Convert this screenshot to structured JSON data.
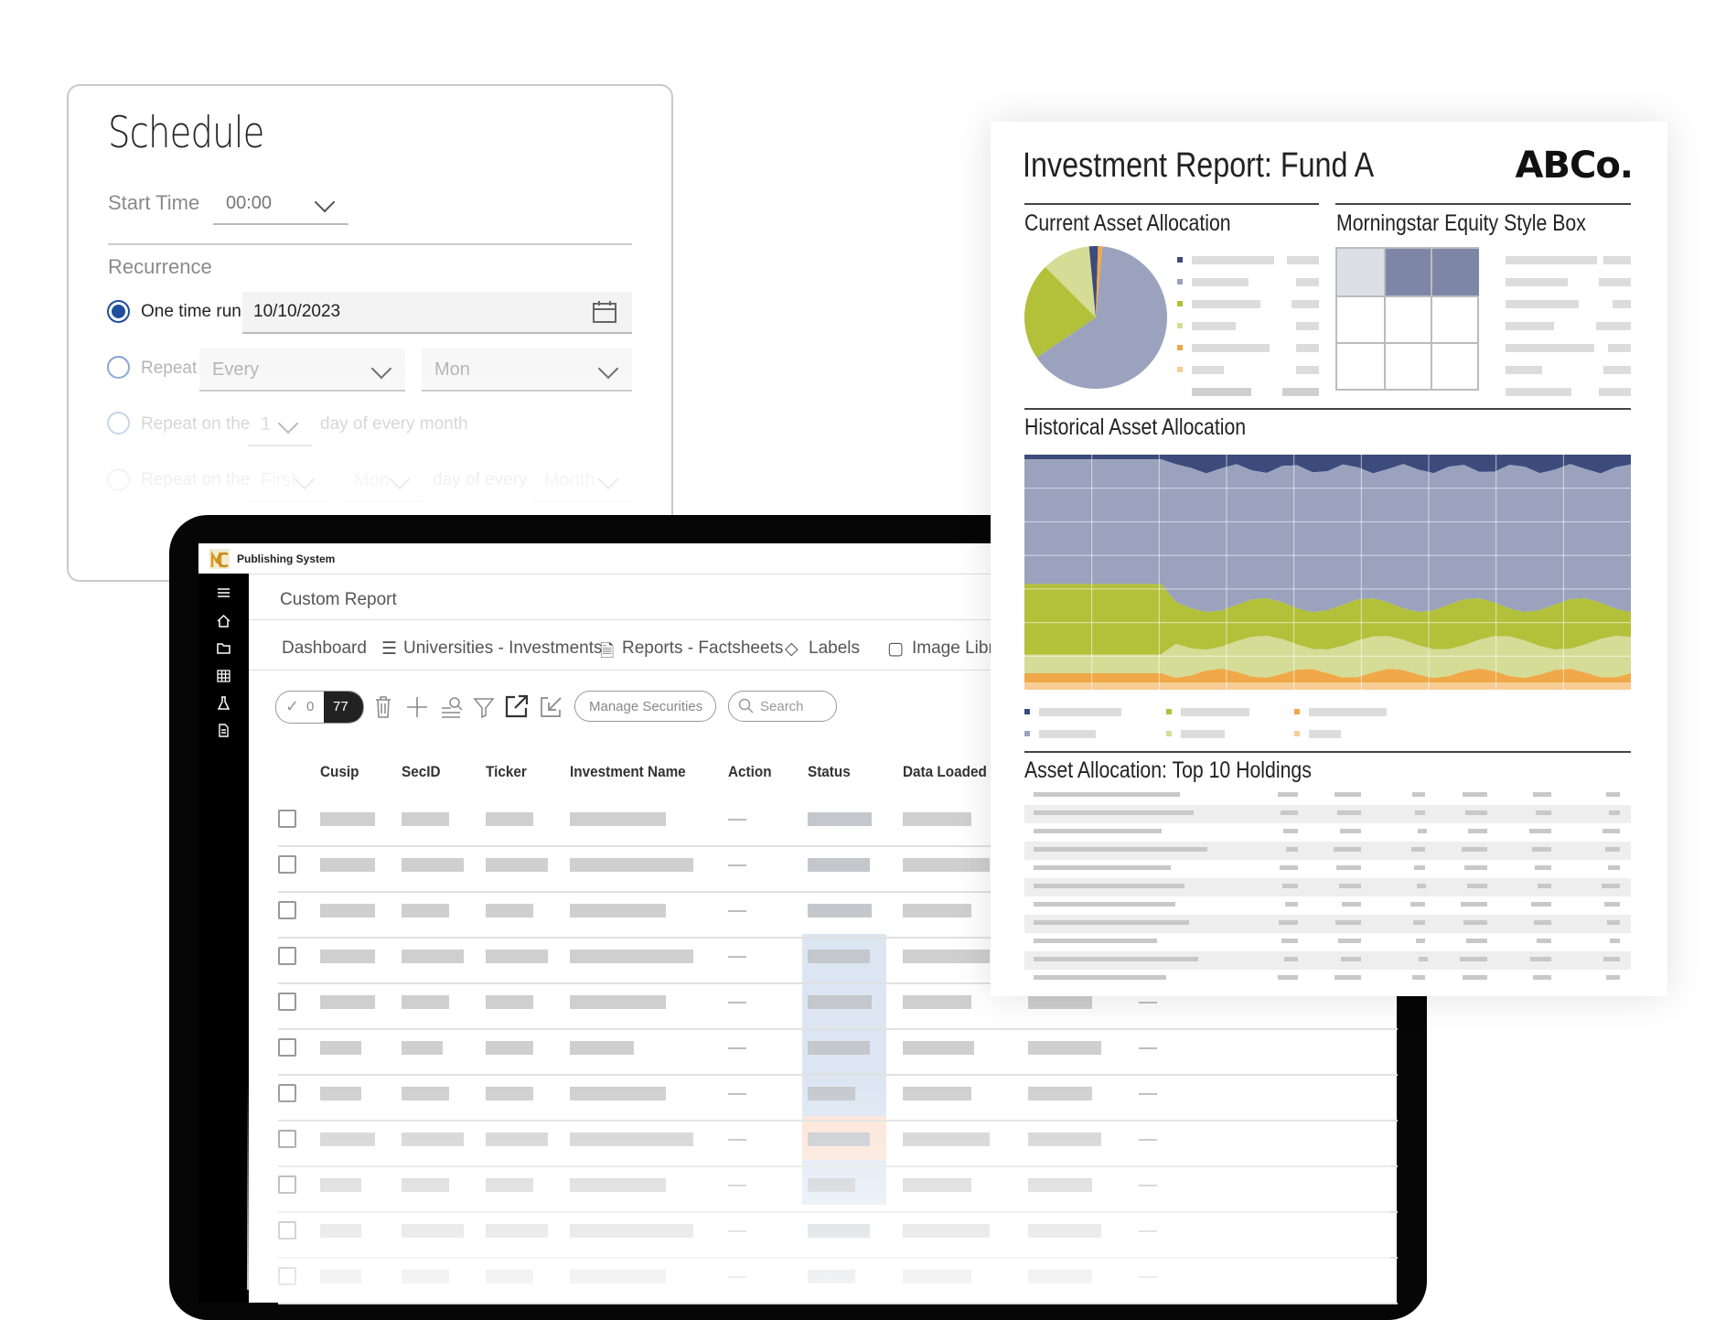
{
  "schedule": {
    "title": "Schedule",
    "start_time_label": "Start Time",
    "start_time_value": "00:00",
    "recurrence_label": "Recurrence",
    "options": {
      "one_time_label": "One time run",
      "one_time_date": "10/10/2023",
      "repeat_label": "Repeat",
      "repeat_every": "Every",
      "repeat_day": "Mon",
      "repeat_on_the_label": "Repeat on the",
      "repeat_on_the_num": "1",
      "day_of_every_month": "day of every month",
      "repeat_on_the_label2": "Repeat on the",
      "first": "First",
      "mon": "Mon",
      "day_of_every": "day of every",
      "month": "Month"
    }
  },
  "app": {
    "title": "Publishing System",
    "breadcrumb": "Custom Report",
    "tabs": [
      "Dashboard",
      "Universities - Investments",
      "Reports - Factsheets",
      "Labels",
      "Image Libra"
    ],
    "toolbar": {
      "selected_count": "0",
      "total_count": "77",
      "manage_button": "Manage Securities",
      "search_placeholder": "Search"
    },
    "columns": [
      "Cusip",
      "SecID",
      "Ticker",
      "Investment Name",
      "Action",
      "Status",
      "Data Loaded"
    ],
    "sidebar_icons": [
      "menu-icon",
      "home-icon",
      "folder-icon",
      "grid-icon",
      "flask-icon",
      "document-icon"
    ]
  },
  "report": {
    "title": "Investment Report: Fund A",
    "brand": "ABCo.",
    "sections": {
      "current_allocation": "Current Asset Allocation",
      "style_box": "Morningstar Equity Style Box",
      "historical": "Historical Asset Allocation",
      "top_holdings": "Asset Allocation: Top 10 Holdings"
    },
    "colors": {
      "navy": "#3d4b7c",
      "slate": "#9aa2bd",
      "green": "#b2c03a",
      "light_green": "#d4dc96",
      "orange": "#f0a848",
      "peach": "#f7cc95"
    }
  },
  "chart_data": {
    "type": "pie",
    "slices": [
      {
        "color": "#9aa2bd",
        "value": 64
      },
      {
        "color": "#b2c03a",
        "value": 22
      },
      {
        "color": "#d4dc96",
        "value": 11
      },
      {
        "color": "#3d4b7c",
        "value": 2
      },
      {
        "color": "#f0a848",
        "value": 1
      }
    ]
  }
}
